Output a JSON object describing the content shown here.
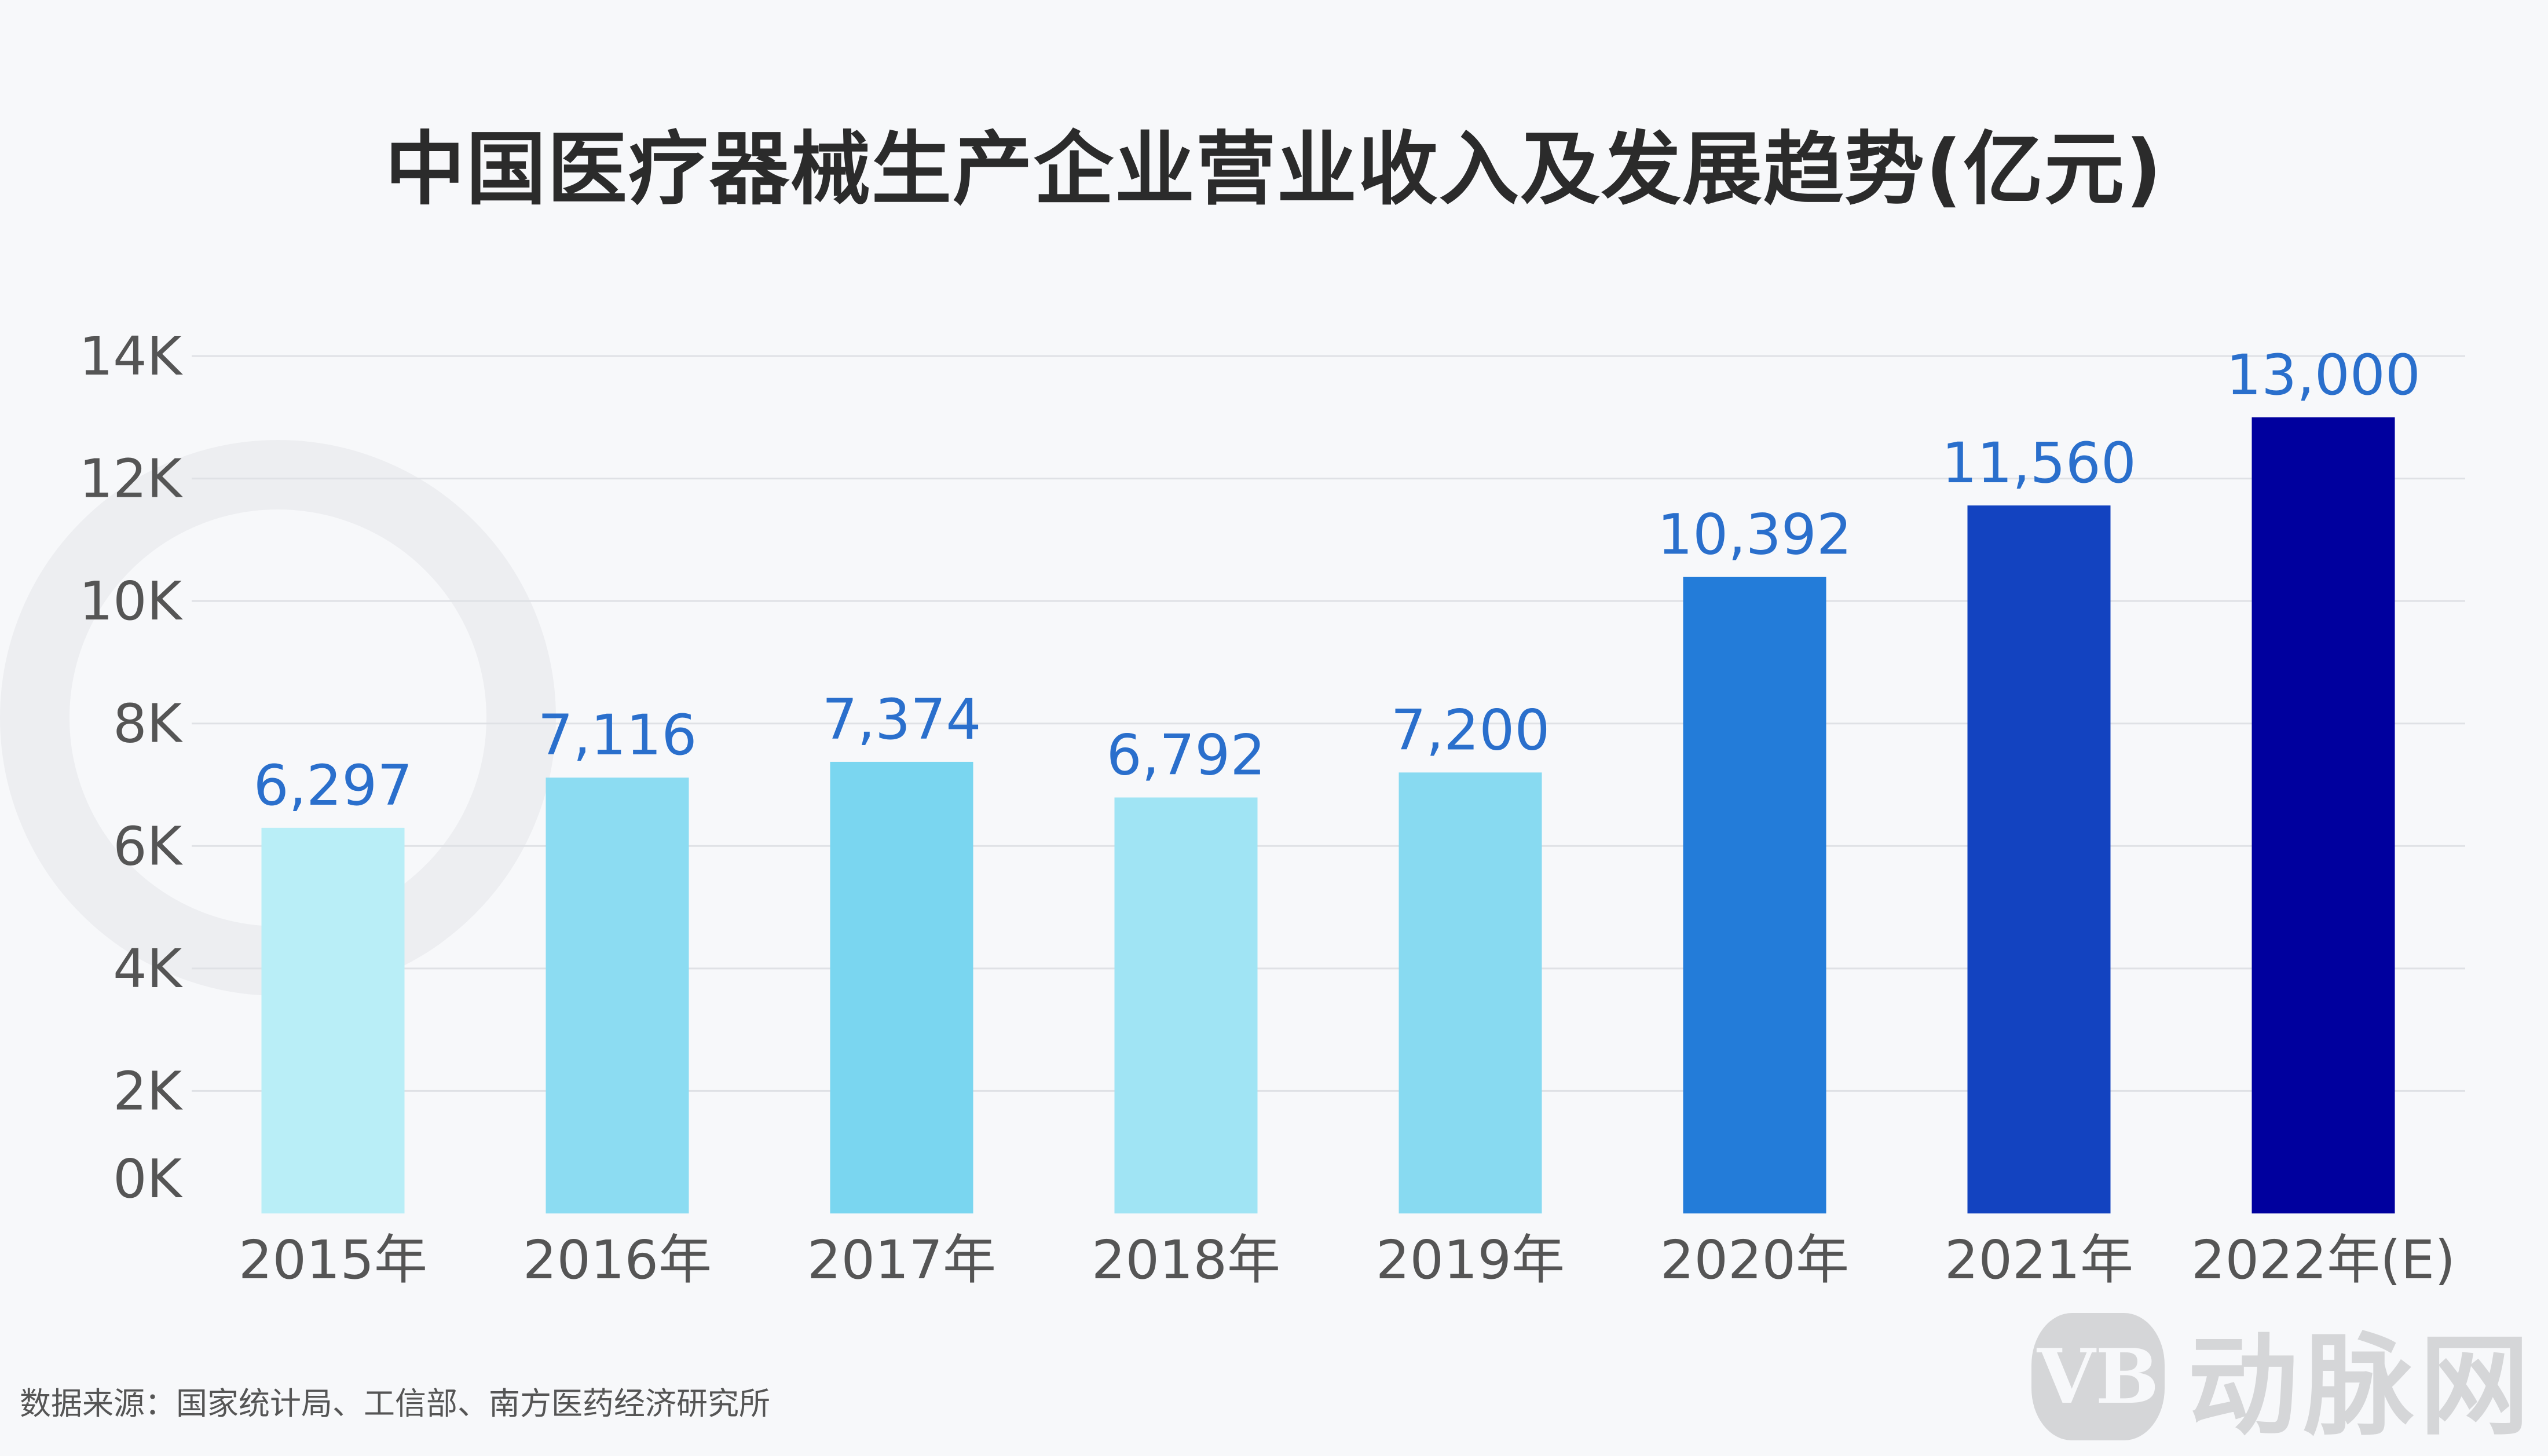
{
  "title": "中国医疗器械生产企业营业收入及发展趋势(亿元)",
  "source": "数据来源：国家统计局、工信部、南方医药经济研究所",
  "logo": {
    "badge": "VB",
    "text": "动脉网"
  },
  "chart_data": {
    "type": "bar",
    "title": "中国医疗器械生产企业营业收入及发展趋势(亿元)",
    "categories": [
      "2015年",
      "2016年",
      "2017年",
      "2018年",
      "2019年",
      "2020年",
      "2021年",
      "2022年(E)"
    ],
    "values": [
      6297,
      7116,
      7374,
      6792,
      7200,
      10392,
      11560,
      13000
    ],
    "value_labels": [
      "6,297",
      "7,116",
      "7,374",
      "6,792",
      "7,200",
      "10,392",
      "11,560",
      "13,000"
    ],
    "bar_colors": [
      "#b9eef7",
      "#8cdcf2",
      "#7ad6f0",
      "#a0e4f4",
      "#88daf1",
      "#237cd9",
      "#1343c0",
      "#00009e"
    ],
    "value_label_color": "#2a6fcc",
    "y_ticks": [
      0,
      2000,
      4000,
      6000,
      8000,
      10000,
      12000,
      14000
    ],
    "y_tick_labels": [
      "0K",
      "2K",
      "4K",
      "6K",
      "8K",
      "10K",
      "12K",
      "14K"
    ],
    "ylim": [
      0,
      14000
    ],
    "grid": true,
    "legend": "none"
  }
}
